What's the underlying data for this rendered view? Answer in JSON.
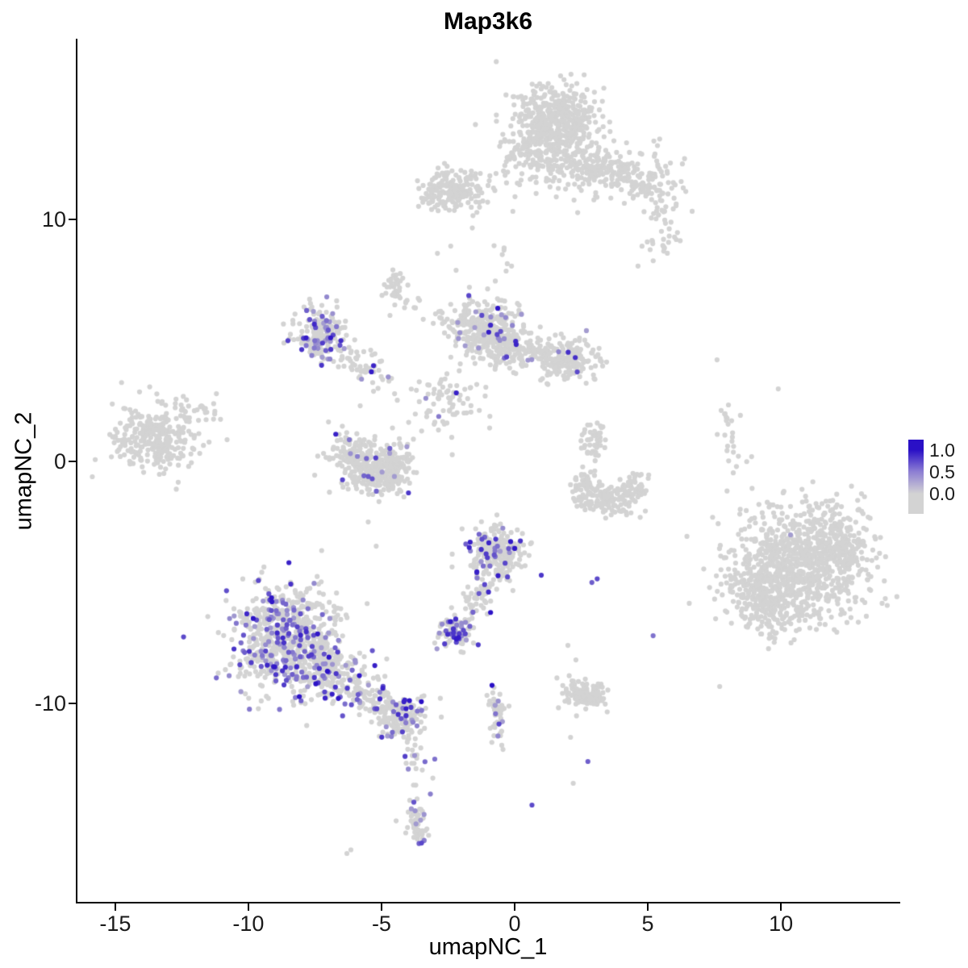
{
  "title": "Map3k6",
  "axes": {
    "x": {
      "label": "umapNC_1",
      "ticks": [
        -15,
        -10,
        -5,
        0,
        5,
        10
      ]
    },
    "y": {
      "label": "umapNC_2",
      "ticks": [
        10,
        0,
        -10
      ]
    }
  },
  "legend": {
    "labels": [
      "1.0",
      "0.5",
      "0.0"
    ],
    "high_color": "#2a10c6",
    "mid_color": "#8d7ed3",
    "low_color": "#d3d3d3"
  },
  "chart_data": {
    "type": "scatter",
    "title": "Map3k6",
    "xlabel": "umapNC_1",
    "ylabel": "umapNC_2",
    "xlim": [
      -16.45,
      14.45
    ],
    "ylim": [
      -18.2,
      17.47
    ],
    "grid": false,
    "background": "#ffffff",
    "point_radius_px": 3.1,
    "color_low": "#d3d3d3",
    "color_high": "#2a10c6",
    "value_range": [
      0.0,
      1.0
    ],
    "legend_position": "right",
    "clusters": [
      {
        "name": "top-main-upper",
        "cx": 1.5,
        "cy": 14.2,
        "sx": 0.8,
        "sy": 0.7,
        "n": 380,
        "f": 0
      },
      {
        "name": "top-main-lower",
        "cx": 1.2,
        "cy": 12.7,
        "sx": 0.95,
        "sy": 0.65,
        "n": 260,
        "f": 0
      },
      {
        "name": "top-right-lobe",
        "cx": 3.0,
        "cy": 12.1,
        "sx": 0.5,
        "sy": 0.55,
        "n": 90,
        "f": 0
      },
      {
        "name": "top-right-scatter",
        "cx": 4.9,
        "cy": 11.5,
        "sx": 0.75,
        "sy": 0.7,
        "n": 120,
        "f": 0
      },
      {
        "name": "top-right-tail",
        "cx": 5.6,
        "cy": 9.6,
        "sx": 0.45,
        "sy": 0.8,
        "n": 40,
        "f": 0
      },
      {
        "name": "topleft-elongated",
        "cx": -2.2,
        "cy": 11.3,
        "sx": 0.55,
        "sy": 0.5,
        "n": 150,
        "f": 0
      },
      {
        "name": "topleft-tail",
        "cx": -3.1,
        "cy": 11.0,
        "sx": 0.3,
        "sy": 0.35,
        "n": 40,
        "f": 0
      },
      {
        "name": "small-upper-left",
        "cx": -4.5,
        "cy": 7.2,
        "sx": 0.22,
        "sy": 0.38,
        "n": 35,
        "f": 0
      },
      {
        "name": "purple-left",
        "cx": -7.3,
        "cy": 5.2,
        "sx": 0.5,
        "sy": 0.6,
        "n": 190,
        "f": 0.28
      },
      {
        "name": "center-top-main",
        "cx": -1.2,
        "cy": 5.5,
        "sx": 0.6,
        "sy": 0.55,
        "n": 280,
        "f": 0.07
      },
      {
        "name": "center-top-east",
        "cx": -0.3,
        "cy": 4.8,
        "sx": 0.5,
        "sy": 0.5,
        "n": 140,
        "f": 0.04
      },
      {
        "name": "center-right-lobe",
        "cx": 2.0,
        "cy": 4.2,
        "sx": 0.55,
        "sy": 0.45,
        "n": 200,
        "f": 0.01
      },
      {
        "name": "mid-scatter",
        "cx": -2.5,
        "cy": 2.4,
        "sx": 0.8,
        "sy": 0.8,
        "n": 80,
        "f": 0.03
      },
      {
        "name": "left-crescent-a",
        "cx": -6.1,
        "cy": 0.3,
        "sx": 0.45,
        "sy": 0.5,
        "n": 130,
        "f": 0.05
      },
      {
        "name": "left-crescent-b",
        "cx": -5.2,
        "cy": -0.6,
        "sx": 0.55,
        "sy": 0.4,
        "n": 160,
        "f": 0.04
      },
      {
        "name": "left-crescent-c",
        "cx": -4.4,
        "cy": -0.2,
        "sx": 0.35,
        "sy": 0.45,
        "n": 90,
        "f": 0.04
      },
      {
        "name": "far-left",
        "cx": -13.6,
        "cy": 1.0,
        "sx": 0.75,
        "sy": 0.7,
        "n": 300,
        "f": 0
      },
      {
        "name": "far-left-edge",
        "cx": -12.0,
        "cy": 1.8,
        "sx": 0.4,
        "sy": 0.5,
        "n": 30,
        "f": 0
      },
      {
        "name": "right-small-upper",
        "cx": 3.0,
        "cy": 0.9,
        "sx": 0.25,
        "sy": 0.4,
        "n": 45,
        "f": 0.02
      },
      {
        "name": "right-crescent-a",
        "cx": 2.7,
        "cy": -1.0,
        "sx": 0.3,
        "sy": 0.4,
        "n": 60,
        "f": 0
      },
      {
        "name": "right-crescent-b",
        "cx": 3.6,
        "cy": -1.6,
        "sx": 0.55,
        "sy": 0.3,
        "n": 110,
        "f": 0
      },
      {
        "name": "right-crescent-c",
        "cx": 4.5,
        "cy": -1.0,
        "sx": 0.25,
        "sy": 0.35,
        "n": 40,
        "f": 0
      },
      {
        "name": "big-right-core",
        "cx": 10.8,
        "cy": -4.3,
        "sx": 1.3,
        "sy": 1.2,
        "n": 800,
        "f": 0.002
      },
      {
        "name": "big-right-sw",
        "cx": 9.3,
        "cy": -5.5,
        "sx": 0.7,
        "sy": 0.8,
        "n": 250,
        "f": 0
      },
      {
        "name": "big-right-ne",
        "cx": 12.2,
        "cy": -3.5,
        "sx": 0.6,
        "sy": 0.8,
        "n": 150,
        "f": 0
      },
      {
        "name": "center-purple",
        "cx": -0.6,
        "cy": -3.8,
        "sx": 0.5,
        "sy": 0.55,
        "n": 230,
        "f": 0.17
      },
      {
        "name": "small-dense-purple",
        "cx": -2.3,
        "cy": -7.1,
        "sx": 0.32,
        "sy": 0.28,
        "n": 90,
        "f": 0.4
      },
      {
        "name": "bottomleft-core",
        "cx": -8.6,
        "cy": -7.3,
        "sx": 1.0,
        "sy": 1.1,
        "n": 650,
        "f": 0.22
      },
      {
        "name": "bottomleft-se",
        "cx": -7.0,
        "cy": -8.7,
        "sx": 0.6,
        "sy": 0.6,
        "n": 180,
        "f": 0.2
      },
      {
        "name": "bottomleft-arm-end",
        "cx": -4.2,
        "cy": -10.5,
        "sx": 0.45,
        "sy": 0.45,
        "n": 140,
        "f": 0.2
      },
      {
        "name": "bottom-small",
        "cx": -3.7,
        "cy": -14.9,
        "sx": 0.22,
        "sy": 0.45,
        "n": 55,
        "f": 0.3
      },
      {
        "name": "bottom-center-right",
        "cx": 2.6,
        "cy": -9.7,
        "sx": 0.5,
        "sy": 0.3,
        "n": 120,
        "f": 0
      }
    ],
    "arms": [
      {
        "name": "topright-bridge",
        "x1": 3.4,
        "y1": 12.2,
        "x2": 4.3,
        "y2": 11.8,
        "n": 35,
        "j": 0.3,
        "f": 0
      },
      {
        "name": "purpleleft-to-center",
        "x1": -6.5,
        "y1": 4.4,
        "x2": -4.9,
        "y2": 3.4,
        "n": 55,
        "j": 0.3,
        "f": 0.1
      },
      {
        "name": "center-top-bridge",
        "x1": 0.2,
        "y1": 4.7,
        "x2": 1.2,
        "y2": 4.4,
        "n": 45,
        "j": 0.28,
        "f": 0.02
      },
      {
        "name": "trail-to-center",
        "x1": -4.4,
        "y1": 6.8,
        "x2": -2.6,
        "y2": 5.9,
        "n": 18,
        "j": 0.25,
        "f": 0
      },
      {
        "name": "top-vertical-trail",
        "x1": -0.6,
        "y1": 9.6,
        "x2": -0.1,
        "y2": 7.2,
        "n": 12,
        "j": 0.4,
        "f": 0
      },
      {
        "name": "right-sparse-line",
        "x1": 8.0,
        "y1": 2.2,
        "x2": 8.3,
        "y2": -0.5,
        "n": 25,
        "j": 0.25,
        "f": 0
      },
      {
        "name": "center-purple-arm",
        "x1": -1.0,
        "y1": -5.0,
        "x2": -2.0,
        "y2": -6.7,
        "n": 60,
        "j": 0.3,
        "f": 0.12
      },
      {
        "name": "bottomleft-arm",
        "x1": -6.3,
        "y1": -9.3,
        "x2": -4.8,
        "y2": -10.2,
        "n": 120,
        "j": 0.4,
        "f": 0.18
      },
      {
        "name": "bottom-trail",
        "x1": -3.9,
        "y1": -11.3,
        "x2": -3.6,
        "y2": -13.4,
        "n": 25,
        "j": 0.22,
        "f": 0.08
      },
      {
        "name": "center-bottom-streak",
        "x1": -0.8,
        "y1": -9.5,
        "x2": -0.55,
        "y2": -11.6,
        "n": 50,
        "j": 0.17,
        "f": 0.12
      }
    ],
    "singles": [
      {
        "x": -2.9,
        "y": 8.6,
        "v": 0
      },
      {
        "x": -2.4,
        "y": 8.9,
        "v": 0
      },
      {
        "x": -2.2,
        "y": 7.9,
        "v": 0
      },
      {
        "x": -1.7,
        "y": 7.2,
        "v": 0
      },
      {
        "x": -0.2,
        "y": 12.6,
        "v": 0
      },
      {
        "x": -0.7,
        "y": 11.9,
        "v": 0
      },
      {
        "x": 0.1,
        "y": 11.5,
        "v": 0
      },
      {
        "x": 2.35,
        "y": 3.7,
        "v": 0.7
      },
      {
        "x": -5.8,
        "y": 2.3,
        "v": 0
      },
      {
        "x": -5.3,
        "y": 2.9,
        "v": 0
      },
      {
        "x": -11.2,
        "y": 2.8,
        "v": 0
      },
      {
        "x": -10.8,
        "y": 0.9,
        "v": 0
      },
      {
        "x": 7.6,
        "y": 4.2,
        "v": 0
      },
      {
        "x": 9.9,
        "y": 3.0,
        "v": 0
      },
      {
        "x": 8.9,
        "y": 0.2,
        "v": 0
      },
      {
        "x": 1.0,
        "y": -4.7,
        "v": 0.8
      },
      {
        "x": 2.9,
        "y": -5.0,
        "v": 0.6
      },
      {
        "x": 3.1,
        "y": -4.85,
        "v": 0.7
      },
      {
        "x": 5.2,
        "y": -7.2,
        "v": 0.5
      },
      {
        "x": -0.85,
        "y": -9.25,
        "v": 1.0
      },
      {
        "x": 2.75,
        "y": -12.4,
        "v": 0.6
      },
      {
        "x": 2.1,
        "y": -11.4,
        "v": 0
      },
      {
        "x": 0.65,
        "y": -14.2,
        "v": 0.7
      },
      {
        "x": -6.3,
        "y": -16.2,
        "v": 0
      },
      {
        "x": -6.15,
        "y": -16.05,
        "v": 0
      },
      {
        "x": -5.5,
        "y": -2.5,
        "v": 0
      },
      {
        "x": -5.2,
        "y": -3.5,
        "v": 0
      },
      {
        "x": 2.3,
        "y": -8.2,
        "v": 0
      },
      {
        "x": 2.0,
        "y": -7.6,
        "v": 0
      },
      {
        "x": 7.7,
        "y": -9.3,
        "v": 0
      },
      {
        "x": 2.2,
        "y": -13.3,
        "v": 0
      },
      {
        "x": -3.0,
        "y": -12.3,
        "v": 0.5
      }
    ]
  }
}
